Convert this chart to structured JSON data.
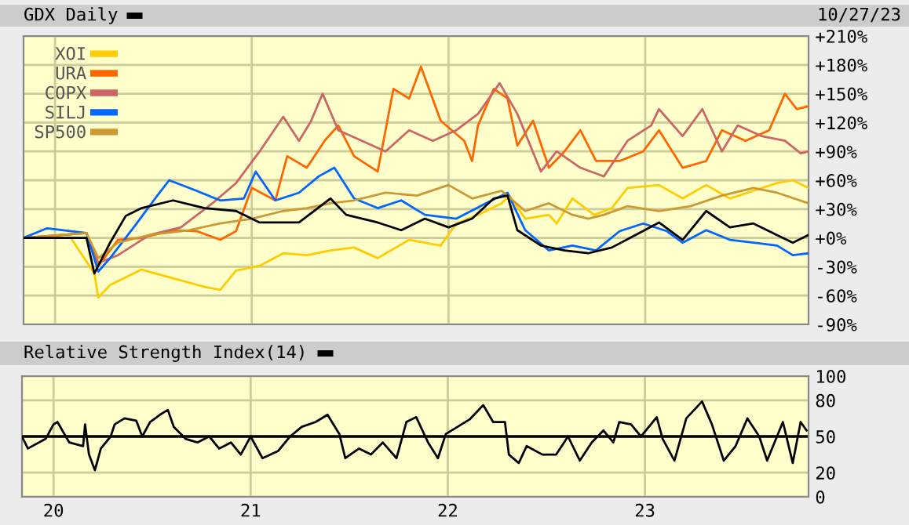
{
  "chart_data": [
    {
      "type": "line",
      "title": "GDX Daily",
      "annotations": [
        "10/27/23"
      ],
      "xlim": [
        2019.84,
        2023.83
      ],
      "xticks": [
        {
          "value": 2020,
          "label": null
        },
        {
          "value": 2021,
          "label": null
        },
        {
          "value": 2022,
          "label": null
        },
        {
          "value": 2023,
          "label": null
        }
      ],
      "ylim": [
        -90,
        210
      ],
      "yticks": [
        {
          "value": -90,
          "label": "-90%"
        },
        {
          "value": -60,
          "label": "-60%"
        },
        {
          "value": -30,
          "label": "-30%"
        },
        {
          "value": 0,
          "label": "+0%"
        },
        {
          "value": 30,
          "label": "+30%"
        },
        {
          "value": 60,
          "label": "+60%"
        },
        {
          "value": 90,
          "label": "+90%"
        },
        {
          "value": 120,
          "label": "+120%"
        },
        {
          "value": 150,
          "label": "+150%"
        },
        {
          "value": 180,
          "label": "+180%"
        },
        {
          "value": 210,
          "label": "+210%"
        }
      ],
      "tick_labels": "y",
      "grid": true,
      "legend": "top left",
      "series": [
        {
          "name": "XOI",
          "color": "#ffcc00",
          "x": [
            2019.84,
            2020.08,
            2020.2,
            2020.22,
            2020.28,
            2020.44,
            2020.6,
            2020.76,
            2020.84,
            2020.92,
            2021.04,
            2021.16,
            2021.28,
            2021.4,
            2021.52,
            2021.64,
            2021.8,
            2021.96,
            2022.04,
            2022.15,
            2022.27,
            2022.31,
            2022.39,
            2022.51,
            2022.55,
            2022.63,
            2022.74,
            2022.83,
            2022.91,
            2023.07,
            2023.19,
            2023.31,
            2023.43,
            2023.55,
            2023.67,
            2023.75,
            2023.83
          ],
          "values": [
            0,
            0,
            -37,
            -62,
            -49,
            -33,
            -42,
            -51,
            -54,
            -34,
            -29,
            -16,
            -18,
            -13,
            -10,
            -21,
            -2,
            -8,
            15,
            24,
            36,
            44,
            20,
            24,
            15,
            41,
            24,
            31,
            52,
            55,
            41,
            55,
            41,
            49,
            57,
            60,
            52
          ]
        },
        {
          "name": "URA",
          "color": "#ff6600",
          "x": [
            2019.84,
            2020.16,
            2020.22,
            2020.32,
            2020.44,
            2020.6,
            2020.72,
            2020.84,
            2020.92,
            2021.0,
            2021.12,
            2021.18,
            2021.28,
            2021.37,
            2021.44,
            2021.52,
            2021.64,
            2021.72,
            2021.8,
            2021.86,
            2021.96,
            2022.08,
            2022.12,
            2022.15,
            2022.23,
            2022.3,
            2022.35,
            2022.43,
            2022.51,
            2022.59,
            2022.67,
            2022.75,
            2022.87,
            2022.99,
            2023.07,
            2023.19,
            2023.31,
            2023.39,
            2023.51,
            2023.63,
            2023.71,
            2023.77,
            2023.83
          ],
          "values": [
            0,
            5,
            -29,
            -2,
            0,
            8,
            7,
            -2,
            7,
            52,
            39,
            85,
            73,
            101,
            117,
            85,
            69,
            155,
            145,
            178,
            122,
            101,
            80,
            117,
            155,
            145,
            96,
            122,
            73,
            90,
            112,
            80,
            80,
            90,
            112,
            73,
            80,
            112,
            101,
            112,
            150,
            134,
            137
          ]
        },
        {
          "name": "COPX",
          "color": "#cc6666",
          "x": [
            2019.84,
            2020.16,
            2020.22,
            2020.32,
            2020.48,
            2020.64,
            2020.8,
            2020.92,
            2021.04,
            2021.16,
            2021.24,
            2021.3,
            2021.36,
            2021.44,
            2021.56,
            2021.68,
            2021.8,
            2021.92,
            2022.04,
            2022.15,
            2022.26,
            2022.35,
            2022.47,
            2022.55,
            2022.67,
            2022.79,
            2022.91,
            2023.03,
            2023.07,
            2023.19,
            2023.29,
            2023.39,
            2023.47,
            2023.59,
            2023.71,
            2023.79,
            2023.83
          ],
          "values": [
            0,
            5,
            -26,
            -18,
            3,
            11,
            36,
            57,
            90,
            126,
            101,
            121,
            150,
            112,
            101,
            90,
            112,
            101,
            112,
            129,
            161,
            129,
            69,
            90,
            73,
            64,
            101,
            117,
            134,
            106,
            134,
            90,
            117,
            106,
            101,
            88,
            90
          ]
        },
        {
          "name": "SILJ",
          "color": "#0066ff",
          "x": [
            2019.84,
            2019.96,
            2020.16,
            2020.22,
            2020.28,
            2020.4,
            2020.52,
            2020.58,
            2020.72,
            2020.84,
            2020.96,
            2021.02,
            2021.12,
            2021.24,
            2021.34,
            2021.42,
            2021.52,
            2021.64,
            2021.76,
            2021.88,
            2022.04,
            2022.19,
            2022.3,
            2022.39,
            2022.51,
            2022.63,
            2022.75,
            2022.87,
            2022.99,
            2023.11,
            2023.19,
            2023.31,
            2023.43,
            2023.55,
            2023.67,
            2023.75,
            2023.83
          ],
          "values": [
            0,
            10,
            5,
            -35,
            -21,
            11,
            44,
            60,
            49,
            39,
            41,
            69,
            39,
            47,
            64,
            73,
            41,
            31,
            39,
            24,
            20,
            36,
            47,
            8,
            -13,
            -8,
            -13,
            7,
            15,
            7,
            -5,
            8,
            -2,
            -5,
            -8,
            -18,
            -16
          ]
        },
        {
          "name": "SP500",
          "color": "#cc9933",
          "x": [
            2019.84,
            2020.16,
            2020.22,
            2020.32,
            2020.48,
            2020.68,
            2020.84,
            2021.0,
            2021.16,
            2021.28,
            2021.4,
            2021.52,
            2021.68,
            2021.84,
            2022.0,
            2022.12,
            2022.27,
            2022.39,
            2022.51,
            2022.63,
            2022.71,
            2022.79,
            2022.91,
            2023.07,
            2023.23,
            2023.39,
            2023.55,
            2023.67,
            2023.83
          ],
          "values": [
            0,
            5,
            -21,
            -5,
            3,
            8,
            15,
            20,
            28,
            31,
            36,
            39,
            47,
            44,
            55,
            41,
            49,
            28,
            36,
            24,
            20,
            24,
            33,
            28,
            33,
            44,
            52,
            47,
            36
          ]
        },
        {
          "color": "#000000",
          "x": [
            2019.84,
            2020.16,
            2020.2,
            2020.28,
            2020.36,
            2020.44,
            2020.6,
            2020.76,
            2020.92,
            2021.04,
            2021.16,
            2021.24,
            2021.4,
            2021.48,
            2021.64,
            2021.76,
            2021.88,
            2022.0,
            2022.12,
            2022.23,
            2022.3,
            2022.35,
            2022.47,
            2022.59,
            2022.71,
            2022.83,
            2022.95,
            2023.07,
            2023.19,
            2023.31,
            2023.43,
            2023.55,
            2023.67,
            2023.75,
            2023.83
          ],
          "values": [
            0,
            0,
            -37,
            -5,
            23,
            31,
            39,
            31,
            28,
            16,
            16,
            16,
            41,
            24,
            16,
            8,
            20,
            11,
            20,
            41,
            44,
            8,
            -8,
            -13,
            -16,
            -10,
            3,
            16,
            -2,
            28,
            11,
            15,
            3,
            -5,
            3
          ]
        }
      ]
    },
    {
      "type": "line",
      "title": "Relative Strength Index(14)",
      "xlim": [
        2019.84,
        2023.83
      ],
      "xticks": [
        {
          "value": 2020,
          "label": "20"
        },
        {
          "value": 2021,
          "label": "21"
        },
        {
          "value": 2022,
          "label": "22"
        },
        {
          "value": 2023,
          "label": "23"
        }
      ],
      "ylim": [
        0,
        100
      ],
      "yticks": [
        0,
        20,
        50,
        80,
        100
      ],
      "grid": true,
      "ref_lines": [
        {
          "axis": "y",
          "value": 50,
          "color": "#000000"
        }
      ],
      "series": [
        {
          "color": "#000000",
          "x": [
            2019.84,
            2019.87,
            2019.96,
            2020.0,
            2020.02,
            2020.08,
            2020.15,
            2020.16,
            2020.18,
            2020.21,
            2020.24,
            2020.29,
            2020.31,
            2020.36,
            2020.42,
            2020.45,
            2020.49,
            2020.54,
            2020.58,
            2020.61,
            2020.67,
            2020.73,
            2020.79,
            2020.84,
            2020.9,
            2020.95,
            2021.0,
            2021.06,
            2021.14,
            2021.2,
            2021.26,
            2021.33,
            2021.39,
            2021.45,
            2021.48,
            2021.55,
            2021.61,
            2021.67,
            2021.74,
            2021.79,
            2021.84,
            2021.9,
            2021.95,
            2021.99,
            2022.05,
            2022.11,
            2022.18,
            2022.23,
            2022.29,
            2022.31,
            2022.36,
            2022.4,
            2022.48,
            2022.55,
            2022.61,
            2022.67,
            2022.73,
            2022.79,
            2022.84,
            2022.87,
            2022.93,
            2022.98,
            2023.06,
            2023.09,
            2023.15,
            2023.21,
            2023.29,
            2023.34,
            2023.4,
            2023.46,
            2023.52,
            2023.58,
            2023.62,
            2023.7,
            2023.75,
            2023.79,
            2023.82
          ],
          "values": [
            50,
            40,
            48,
            60,
            62,
            45,
            42,
            60,
            35,
            22,
            40,
            50,
            60,
            65,
            63,
            50,
            62,
            68,
            72,
            58,
            48,
            45,
            50,
            40,
            45,
            35,
            50,
            32,
            38,
            50,
            58,
            62,
            68,
            52,
            32,
            40,
            35,
            45,
            32,
            62,
            66,
            45,
            32,
            52,
            58,
            64,
            76,
            62,
            62,
            35,
            28,
            42,
            35,
            35,
            50,
            30,
            45,
            55,
            45,
            62,
            60,
            50,
            66,
            48,
            30,
            65,
            79,
            60,
            30,
            42,
            65,
            50,
            30,
            62,
            28,
            62,
            55
          ]
        }
      ]
    }
  ]
}
